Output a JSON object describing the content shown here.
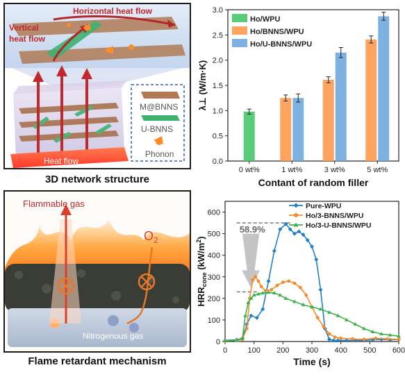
{
  "panel_tl": {
    "horizontal_label": "Horizontal heat flow",
    "vertical_label_1": "Vertical",
    "vertical_label_2": "heat flow",
    "heat_flow_label": "Heat flow",
    "legend": [
      "M@BNNS",
      "U-BNNS",
      "Phonon"
    ],
    "caption": "3D network structure",
    "colors": {
      "arrow_red": "#b3262a",
      "arrow_green": "#3cb371",
      "heat_base": "#ff5a3c",
      "sheet_brown": "#b07a55",
      "legend_box": "#3060c0"
    }
  },
  "panel_bl": {
    "flammable_label": "Flammable gas",
    "o2_label": "O",
    "o2_sub": "2",
    "nitrogen_label": "Nitrogenous gas",
    "caption": "Flame retardant mechanism",
    "colors": {
      "flame": "#ff8c1a",
      "char": "#3a3d36",
      "arrow": "#d8402e",
      "o2_arrow": "#e0782a"
    }
  },
  "chart_top": {
    "chart_data": {
      "type": "bar",
      "categories": [
        "0 wt%",
        "1 wt%",
        "3 wt%",
        "5 wt%"
      ],
      "series": [
        {
          "name": "Ho/WPU",
          "color": "#47c76a",
          "values": [
            0.98,
            null,
            null,
            null
          ],
          "errors": [
            0.05,
            null,
            null,
            null
          ]
        },
        {
          "name": "Ho/BNNS/WPU",
          "color": "#ff9a4d",
          "values": [
            null,
            1.25,
            1.61,
            2.41
          ],
          "errors": [
            null,
            0.06,
            0.06,
            0.07
          ]
        },
        {
          "name": "Ho/U-BNNS/WPU",
          "color": "#6fa8dc",
          "values": [
            null,
            1.25,
            2.15,
            2.87
          ],
          "errors": [
            null,
            0.08,
            0.1,
            0.08
          ]
        }
      ],
      "xlabel": "Contant of random filler",
      "ylabel": "λ⊥ (W/m·K)",
      "ylim": [
        0,
        3.0
      ],
      "yticks": [
        "0.0",
        "0.5",
        "1.0",
        "1.5",
        "2.0",
        "2.5",
        "3.0"
      ],
      "legend_position": "top-left"
    }
  },
  "chart_bottom": {
    "chart_data": {
      "type": "line",
      "series": [
        {
          "name": "Pure-WPU",
          "color": "#1f7fc6",
          "marker": "diamond",
          "x": [
            0,
            40,
            60,
            75,
            90,
            110,
            130,
            150,
            170,
            190,
            210,
            225,
            240,
            255,
            270,
            285,
            300,
            315,
            330,
            345,
            360,
            375,
            390,
            420,
            450,
            480,
            510,
            540,
            570,
            600
          ],
          "y": [
            5,
            8,
            15,
            80,
            120,
            110,
            150,
            280,
            420,
            520,
            545,
            520,
            500,
            510,
            495,
            470,
            440,
            380,
            240,
            60,
            10,
            5,
            5,
            5,
            5,
            5,
            8,
            10,
            8,
            10
          ]
        },
        {
          "name": "Ho/3-BNNS/WPU",
          "color": "#f58b2a",
          "marker": "circle",
          "x": [
            0,
            40,
            60,
            75,
            85,
            95,
            105,
            115,
            125,
            140,
            160,
            180,
            200,
            220,
            240,
            260,
            280,
            300,
            320,
            340,
            360,
            380,
            400,
            440,
            480,
            520,
            560,
            600
          ],
          "y": [
            3,
            5,
            10,
            60,
            200,
            285,
            300,
            280,
            255,
            235,
            240,
            260,
            275,
            280,
            270,
            250,
            215,
            160,
            110,
            70,
            35,
            20,
            15,
            12,
            10,
            15,
            12,
            10
          ]
        },
        {
          "name": "Ho/3-U-BNNS/WPU",
          "color": "#3cb34a",
          "marker": "triangle",
          "x": [
            0,
            40,
            60,
            70,
            80,
            90,
            100,
            115,
            130,
            150,
            170,
            190,
            210,
            240,
            270,
            300,
            330,
            360,
            390,
            420,
            450,
            480,
            510,
            540,
            570,
            600
          ],
          "y": [
            3,
            5,
            15,
            120,
            180,
            200,
            215,
            220,
            225,
            228,
            225,
            215,
            200,
            185,
            170,
            160,
            150,
            135,
            120,
            100,
            80,
            60,
            45,
            35,
            30,
            25
          ]
        }
      ],
      "xlabel": "Time (s)",
      "ylabel": "HRRcone (kW/m²)",
      "ylabel_main": "HRR",
      "ylabel_sub": "cone",
      "ylabel_unit": " (kW/m",
      "ylabel_sup": "2",
      "ylabel_end": ")",
      "xlim": [
        0,
        600
      ],
      "ylim": [
        0,
        650
      ],
      "xticks": [
        "0",
        "100",
        "200",
        "300",
        "400",
        "500",
        "600"
      ],
      "yticks": [
        "0",
        "100",
        "200",
        "300",
        "400",
        "500",
        "600"
      ],
      "annotation": "58.9%",
      "ref_lines": [
        550,
        230
      ],
      "legend_position": "top-right"
    }
  }
}
